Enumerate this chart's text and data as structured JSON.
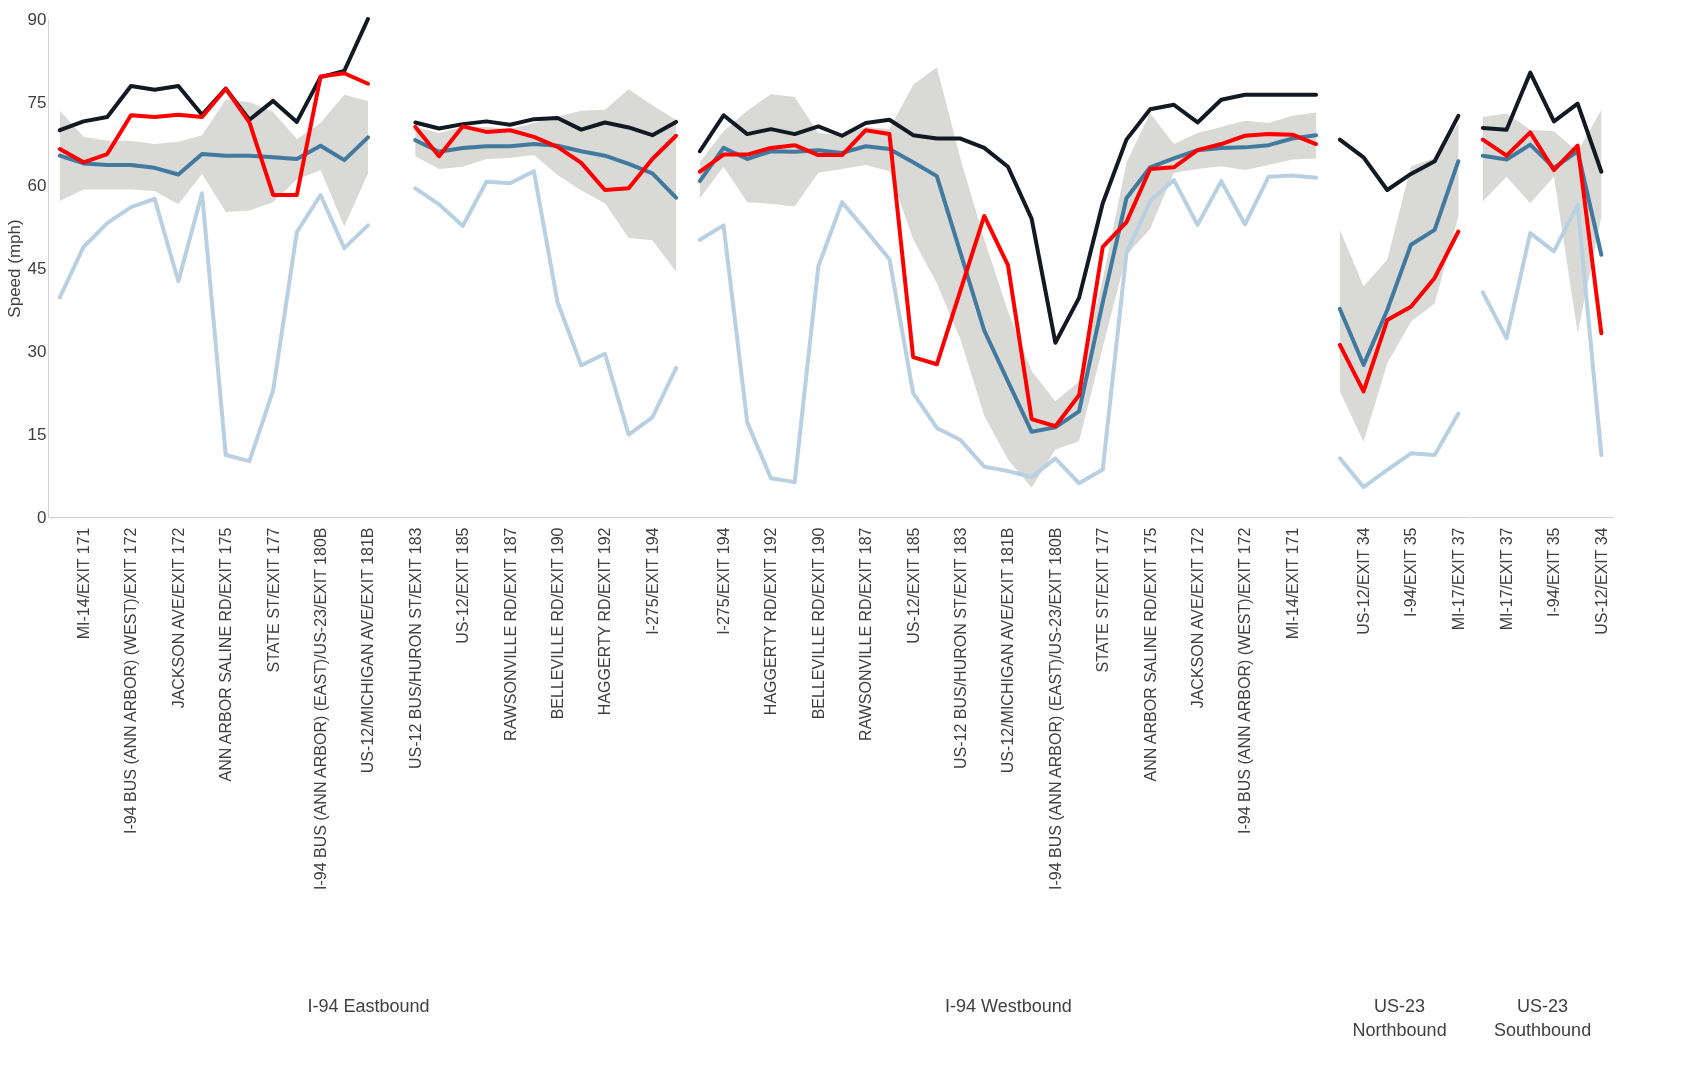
{
  "chart_data": [
    {
      "type": "line",
      "xlabel": "I-94 Eastbound",
      "ylabel": "Speed (mph)",
      "ylim": [
        0,
        90
      ],
      "yticks": [
        0,
        15,
        30,
        45,
        60,
        75,
        90
      ],
      "grid": false,
      "categories": [
        null,
        "MI-14/EXIT 171",
        null,
        "I-94 BUS (ANN ARBOR) (WEST)/EXIT 172",
        null,
        "JACKSON AVE/EXIT 172",
        null,
        "ANN ARBOR SALINE RD/EXIT 175",
        null,
        "STATE ST/EXIT 177",
        null,
        "I-94 BUS (ANN ARBOR) (EAST)/US-23/EXIT 180B",
        null,
        "US-12/MICHIGAN AVE/EXIT 181B",
        null,
        "US-12 BUS/HURON ST/EXIT 183",
        null,
        "US-12/EXIT 185",
        null,
        "RAWSONVILLE RD/EXIT 187",
        null,
        "BELLEVILLE RD/EXIT 190",
        null,
        "HAGGERTY RD/EXIT 192",
        null,
        "I-275/EXIT 194",
        null
      ],
      "series": [
        {
          "color": "#b8d0e2",
          "values": [
            39.7,
            48.8,
            53.1,
            56.0,
            57.5,
            42.6,
            58.5,
            11.2,
            10.1,
            22.9,
            51.5,
            58.2,
            48.6,
            52.7,
            null,
            59.4,
            56.5,
            52.6,
            60.6,
            60.3,
            62.5,
            38.8,
            27.4,
            29.5,
            14.9,
            18.0,
            26.9
          ]
        },
        {
          "color": "#41799f",
          "values": [
            65.3,
            63.9,
            63.6,
            63.6,
            63.1,
            61.9,
            65.6,
            65.3,
            65.3,
            65.0,
            64.7,
            67.1,
            64.5,
            68.6,
            null,
            68.1,
            66.0,
            66.7,
            67.0,
            67.0,
            67.4,
            67.1,
            66.1,
            65.3,
            63.8,
            62.1,
            57.7
          ],
          "lower": [
            57.1,
            59.2,
            59.2,
            59.2,
            58.9,
            56.5,
            62.0,
            55.1,
            55.4,
            56.9,
            61.0,
            62.7,
            52.5,
            62.1,
            null,
            65.2,
            62.9,
            63.3,
            64.7,
            64.9,
            65.4,
            61.8,
            59.0,
            56.7,
            50.4,
            50.0,
            44.3
          ],
          "upper": [
            73.4,
            68.7,
            68.0,
            68.0,
            67.4,
            67.8,
            69.0,
            75.4,
            75.0,
            73.2,
            68.3,
            71.2,
            76.3,
            75.2,
            null,
            70.5,
            69.4,
            70.5,
            70.5,
            70.1,
            71.2,
            72.4,
            73.4,
            73.6,
            77.3,
            74.4,
            71.8
          ]
        },
        {
          "color": "#111a22",
          "values": [
            69.9,
            71.5,
            72.3,
            77.9,
            77.2,
            77.9,
            72.7,
            77.4,
            71.8,
            75.2,
            71.4,
            79.5,
            80.6,
            90,
            null,
            71.3,
            70.2,
            71.0,
            71.5,
            70.9,
            71.9,
            72.1,
            70.0,
            71.3,
            70.4,
            69.0,
            71.4
          ]
        },
        {
          "color": "#ff0000",
          "values": [
            66.5,
            64.1,
            65.6,
            72.6,
            72.3,
            72.7,
            72.3,
            77.4,
            71.3,
            58.2,
            58.2,
            79.6,
            80.2,
            78.3,
            null,
            70.5,
            65.2,
            70.6,
            69.6,
            69.9,
            68.7,
            66.9,
            64.0,
            59.1,
            59.4,
            64.7,
            68.9
          ]
        }
      ]
    },
    {
      "type": "line",
      "xlabel": "I-94 Westbound",
      "ylim": [
        0,
        90
      ],
      "yticks": [
        0,
        15,
        30,
        45,
        60,
        75,
        90
      ],
      "grid": false,
      "tick_labels": "x",
      "categories": [
        null,
        "I-275/EXIT 194",
        null,
        "HAGGERTY RD/EXIT 192",
        null,
        "BELLEVILLE RD/EXIT 190",
        null,
        "RAWSONVILLE RD/EXIT 187",
        null,
        "US-12/EXIT 185",
        null,
        "US-12 BUS/HURON ST/EXIT 183",
        null,
        "US-12/MICHIGAN AVE/EXIT 181B",
        null,
        "I-94 BUS (ANN ARBOR) (EAST)/US-23/EXIT 180B",
        null,
        "STATE ST/EXIT 177",
        null,
        "ANN ARBOR SALINE RD/EXIT 175",
        null,
        "JACKSON AVE/EXIT 172",
        null,
        "I-94 BUS (ANN ARBOR) (WEST)/EXIT 172",
        null,
        "MI-14/EXIT 171",
        null
      ],
      "series": [
        {
          "color": "#b8d0e2",
          "values": [
            50.1,
            52.7,
            17.1,
            7.0,
            6.3,
            45.3,
            56.9,
            51.8,
            46.6,
            22.4,
            16.1,
            13.9,
            9.1,
            8.3,
            7.2,
            10.6,
            6.1,
            8.6,
            47.7,
            57.1,
            60.9,
            52.8,
            60.7,
            52.9,
            61.5,
            61.7,
            61.3
          ]
        },
        {
          "color": "#41799f",
          "values": [
            60.7,
            66.7,
            64.7,
            66.1,
            66.0,
            66.3,
            65.8,
            67.0,
            66.5,
            64.1,
            61.6,
            47.7,
            33.7,
            24.5,
            15.4,
            16.2,
            19.1,
            38.8,
            57.6,
            63.2,
            64.8,
            66.3,
            66.7,
            66.8,
            67.2,
            68.4,
            69.0
          ],
          "lower": [
            57.6,
            63.3,
            56.9,
            56.6,
            56.1,
            62.2,
            62.9,
            63.6,
            62.5,
            50.2,
            42.2,
            32.1,
            18.3,
            10.4,
            5.3,
            12.2,
            13.7,
            30.7,
            47.3,
            52.1,
            62.2,
            62.9,
            63.4,
            62.7,
            63.6,
            64.6,
            64.8
          ],
          "upper": [
            64.1,
            69.7,
            73.4,
            76.4,
            75.9,
            69.4,
            69.0,
            70.5,
            70.1,
            78.1,
            81.3,
            64.7,
            50.2,
            37.2,
            26.4,
            20.9,
            24.5,
            43.0,
            64.0,
            73.0,
            67.4,
            69.4,
            70.5,
            71.6,
            71.2,
            72.5,
            73.1
          ]
        },
        {
          "color": "#111a22",
          "values": [
            66.1,
            72.6,
            69.2,
            70.1,
            69.2,
            70.6,
            68.9,
            71.2,
            71.8,
            69.0,
            68.4,
            68.4,
            66.7,
            63.3,
            53.9,
            31.5,
            39.6,
            56.7,
            68.2,
            73.7,
            74.5,
            71.3,
            75.4,
            76.3,
            76.3,
            76.3,
            76.3
          ]
        },
        {
          "color": "#ff0000",
          "values": [
            62.4,
            65.5,
            65.5,
            66.7,
            67.2,
            65.4,
            65.4,
            69.9,
            69.2,
            28.9,
            27.6,
            41.0,
            54.4,
            45.5,
            17.7,
            16.4,
            22.0,
            48.8,
            53.3,
            62.9,
            63.2,
            66.3,
            67.4,
            68.9,
            69.2,
            69.1,
            67.4
          ]
        }
      ]
    },
    {
      "type": "line",
      "xlabel": "US-23 Northbound",
      "ylim": [
        0,
        90
      ],
      "yticks": [
        0,
        15,
        30,
        45,
        60,
        75,
        90
      ],
      "grid": false,
      "tick_labels": "x",
      "categories": [
        null,
        "US-12/EXIT 34",
        null,
        "I-94/EXIT 35",
        null,
        "MI-17/EXIT 37"
      ],
      "series": [
        {
          "color": "#b8d0e2",
          "values": [
            10.6,
            5.4,
            8.5,
            11.5,
            11.2,
            18.7
          ]
        },
        {
          "color": "#41799f",
          "values": [
            37.6,
            27.5,
            37.4,
            49.2,
            51.9,
            64.3
          ],
          "lower": [
            22.7,
            13.6,
            27.8,
            35.3,
            38.6,
            54.3
          ],
          "upper": [
            51.9,
            41.7,
            46.5,
            63.4,
            64.9,
            71.2
          ]
        },
        {
          "color": "#111a22",
          "values": [
            68.2,
            65.0,
            59.1,
            62.0,
            64.3,
            72.5
          ]
        },
        {
          "color": "#ff0000",
          "values": [
            31.1,
            22.7,
            35.6,
            38.0,
            43.2,
            51.6
          ]
        }
      ]
    },
    {
      "type": "line",
      "xlabel": "US-23 Southbound",
      "ylim": [
        0,
        90
      ],
      "yticks": [
        0,
        15,
        30,
        45,
        60,
        75,
        90
      ],
      "grid": false,
      "tick_labels": "x",
      "categories": [
        null,
        "MI-17/EXIT 37",
        null,
        "I-94/EXIT 35",
        null,
        "US-12/EXIT 34"
      ],
      "series": [
        {
          "color": "#b8d0e2",
          "values": [
            40.6,
            32.3,
            51.3,
            48.0,
            56.4,
            11.2
          ]
        },
        {
          "color": "#41799f",
          "values": [
            65.3,
            64.6,
            67.3,
            63.1,
            66.1,
            47.4
          ],
          "lower": [
            57.0,
            61.5,
            56.7,
            61.5,
            33.2,
            54.3
          ],
          "upper": [
            72.3,
            72.9,
            70.0,
            69.7,
            66.0,
            73.6
          ]
        },
        {
          "color": "#111a22",
          "values": [
            70.3,
            70.0,
            80.3,
            71.5,
            74.7,
            62.4
          ]
        },
        {
          "color": "#ff0000",
          "values": [
            68.2,
            65.3,
            69.5,
            62.7,
            67.1,
            33.2
          ]
        }
      ]
    }
  ]
}
